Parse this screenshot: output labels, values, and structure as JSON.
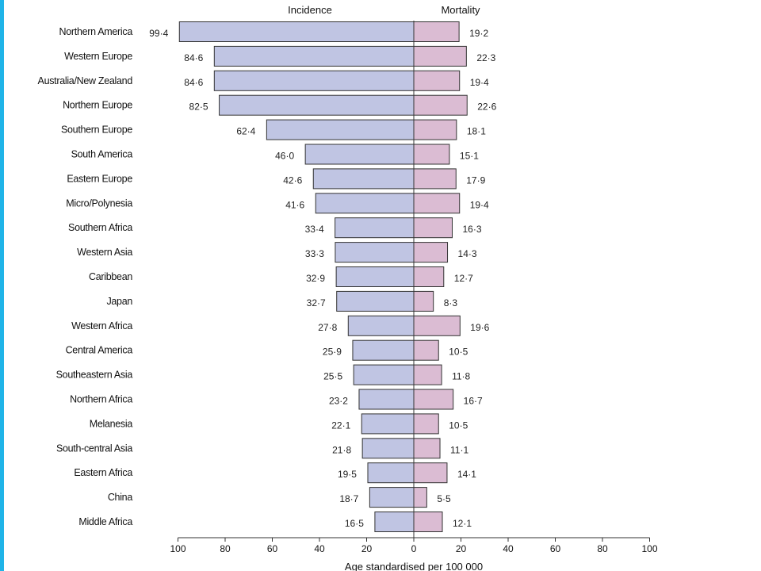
{
  "chart_data": {
    "type": "bar",
    "orientation": "horizontal-diverging",
    "headers": [
      "Incidence",
      "Mortality"
    ],
    "categories": [
      "Northern America",
      "Western Europe",
      "Australia/New Zealand",
      "Northern Europe",
      "Southern Europe",
      "South America",
      "Eastern Europe",
      "Micro/Polynesia",
      "Southern Africa",
      "Western Asia",
      "Caribbean",
      "Japan",
      "Western Africa",
      "Central America",
      "Southeastern Asia",
      "Northern Africa",
      "Melanesia",
      "South-central Asia",
      "Eastern Africa",
      "China",
      "Middle Africa"
    ],
    "series": [
      {
        "name": "Incidence",
        "values": [
          99.4,
          84.6,
          84.6,
          82.5,
          62.4,
          46.0,
          42.6,
          41.6,
          33.4,
          33.3,
          32.9,
          32.7,
          27.8,
          25.9,
          25.5,
          23.2,
          22.1,
          21.8,
          19.5,
          18.7,
          16.5
        ],
        "labels": [
          "99·4",
          "84·6",
          "84·6",
          "82·5",
          "62·4",
          "46·0",
          "42·6",
          "41·6",
          "33·4",
          "33·3",
          "32·9",
          "32·7",
          "27·8",
          "25·9",
          "25·5",
          "23·2",
          "22·1",
          "21·8",
          "19·5",
          "18·7",
          "16·5"
        ],
        "color": "#c0c5e3"
      },
      {
        "name": "Mortality",
        "values": [
          19.2,
          22.3,
          19.4,
          22.6,
          18.1,
          15.1,
          17.9,
          19.4,
          16.3,
          14.3,
          12.7,
          8.3,
          19.6,
          10.5,
          11.8,
          16.7,
          10.5,
          11.1,
          14.1,
          5.5,
          12.1
        ],
        "labels": [
          "19·2",
          "22·3",
          "19·4",
          "22·6",
          "18·1",
          "15·1",
          "17·9",
          "19·4",
          "16·3",
          "14·3",
          "12·7",
          "8·3",
          "19·6",
          "10·5",
          "11·8",
          "16·7",
          "10·5",
          "11·1",
          "14·1",
          "5·5",
          "12·1"
        ],
        "color": "#dbbcd3"
      }
    ],
    "x_ticks": [
      "100",
      "80",
      "60",
      "40",
      "20",
      "0",
      "20",
      "40",
      "60",
      "80",
      "100"
    ],
    "xlim": [
      -100,
      100
    ],
    "xlabel": "Age standardised per 100 000",
    "grid": false,
    "bar_border_color": "#333333"
  }
}
